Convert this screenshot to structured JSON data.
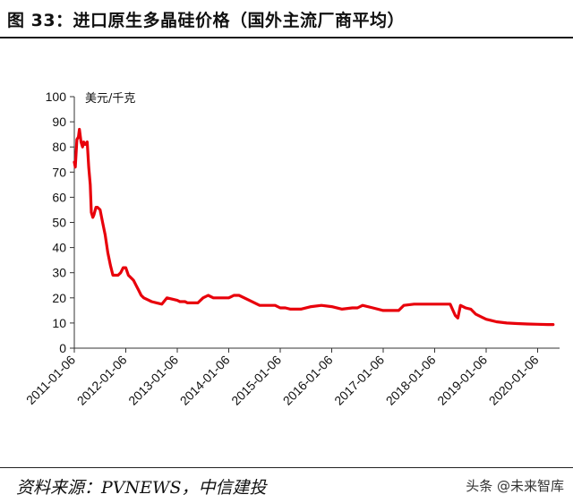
{
  "figure": {
    "title": "图 33：进口原生多晶硅价格（国外主流厂商平均）",
    "source": "资料来源：PVNEWS，中信建投",
    "watermark": "头条 @未来智库"
  },
  "chart_data": {
    "type": "line",
    "title": "",
    "ylabel": "美元/千克",
    "xlabel": "",
    "ylim": [
      0,
      100
    ],
    "yticks": [
      0,
      10,
      20,
      30,
      40,
      50,
      60,
      70,
      80,
      90,
      100
    ],
    "xlim": [
      "2011-01-06",
      "2020-05-01"
    ],
    "x_tick_labels": [
      "2011-01-06",
      "2012-01-06",
      "2013-01-06",
      "2014-01-06",
      "2015-01-06",
      "2016-01-06",
      "2017-01-06",
      "2018-01-06",
      "2019-01-06",
      "2020-01-06"
    ],
    "grid": false,
    "line_color": "#e8000b",
    "series": [
      {
        "name": "进口原生多晶硅价格",
        "x": [
          2011.0,
          2011.02,
          2011.05,
          2011.08,
          2011.1,
          2011.13,
          2011.16,
          2011.18,
          2011.21,
          2011.25,
          2011.28,
          2011.31,
          2011.33,
          2011.36,
          2011.38,
          2011.42,
          2011.45,
          2011.5,
          2011.55,
          2011.6,
          2011.65,
          2011.7,
          2011.75,
          2011.8,
          2011.85,
          2011.9,
          2011.95,
          2012.0,
          2012.05,
          2012.1,
          2012.15,
          2012.2,
          2012.25,
          2012.3,
          2012.35,
          2012.4,
          2012.45,
          2012.5,
          2012.6,
          2012.7,
          2012.8,
          2012.9,
          2013.0,
          2013.05,
          2013.1,
          2013.15,
          2013.2,
          2013.3,
          2013.4,
          2013.5,
          2013.6,
          2013.7,
          2013.8,
          2013.9,
          2014.0,
          2014.05,
          2014.1,
          2014.2,
          2014.4,
          2014.6,
          2014.8,
          2014.9,
          2015.0,
          2015.1,
          2015.2,
          2015.3,
          2015.4,
          2015.6,
          2015.8,
          2016.0,
          2016.2,
          2016.4,
          2016.5,
          2016.6,
          2016.8,
          2017.0,
          2017.1,
          2017.2,
          2017.3,
          2017.4,
          2017.6,
          2017.8,
          2017.9,
          2018.0,
          2018.2,
          2018.3,
          2018.4,
          2018.45,
          2018.5,
          2018.55,
          2018.6,
          2018.7,
          2018.8,
          2018.9,
          2019.0,
          2019.1,
          2019.2,
          2019.4,
          2019.6,
          2019.8,
          2020.0,
          2020.2,
          2020.3
        ],
        "values": [
          74,
          72,
          83,
          84,
          87,
          82,
          80,
          82,
          81,
          82,
          72,
          65,
          54,
          52,
          53,
          56,
          56,
          55,
          50,
          45,
          38,
          33,
          29,
          29,
          29,
          30,
          32,
          32,
          29,
          28,
          27,
          25,
          23,
          21,
          20,
          19.5,
          19,
          18.5,
          18,
          17.5,
          20,
          19.5,
          19,
          18.5,
          18.5,
          18.5,
          18,
          18,
          18,
          20,
          21,
          20,
          20,
          20,
          20,
          20.5,
          21,
          21,
          19,
          17,
          17,
          17,
          16,
          16,
          15.5,
          15.5,
          15.5,
          16.5,
          17,
          16.5,
          15.5,
          16,
          16,
          17,
          16,
          15,
          15,
          15,
          15,
          17,
          17.5,
          17.5,
          17.5,
          17.5,
          17.5,
          17.5,
          13,
          12,
          17,
          16.5,
          16,
          15.5,
          13.5,
          12.5,
          11.5,
          11,
          10.5,
          10,
          9.8,
          9.6,
          9.5,
          9.4,
          9.4
        ]
      }
    ]
  }
}
